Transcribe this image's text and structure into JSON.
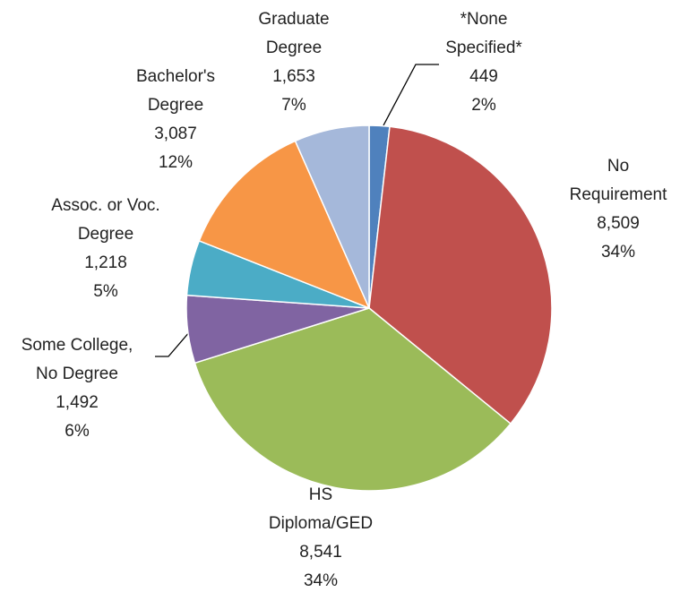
{
  "chart_data": {
    "type": "pie",
    "categories": [
      "*None\nSpecified*",
      "No\nRequirement",
      "HS\nDiploma/GED",
      "Some College,\nNo Degree",
      "Assoc. or Voc.\nDegree",
      "Bachelor's\nDegree",
      "Graduate\nDegree"
    ],
    "values": [
      449,
      8509,
      8541,
      1492,
      1218,
      3087,
      1653
    ],
    "value_labels": [
      "449",
      "8,509",
      "8,541",
      "1,492",
      "1,218",
      "3,087",
      "1,653"
    ],
    "percents": [
      2,
      34,
      34,
      6,
      5,
      12,
      7
    ],
    "percent_labels": [
      "2%",
      "34%",
      "34%",
      "6%",
      "5%",
      "12%",
      "7%"
    ],
    "colors": [
      "#4f81bd",
      "#c0504d",
      "#9bbb59",
      "#8064a2",
      "#4bacc6",
      "#f79646",
      "#a5b8da"
    ]
  }
}
